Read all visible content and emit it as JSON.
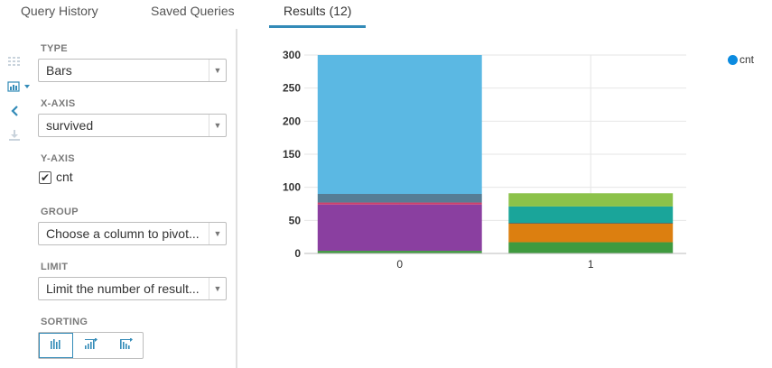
{
  "tabs": [
    {
      "label": "Query History"
    },
    {
      "label": "Saved Queries"
    },
    {
      "label": "Results (12)"
    }
  ],
  "sidebar_icons": [
    "grid-icon",
    "bar-chart-icon",
    "collapse-chevron-icon",
    "download-icon"
  ],
  "panel": {
    "type_label": "TYPE",
    "type_value": "Bars",
    "xaxis_label": "X-AXIS",
    "xaxis_value": "survived",
    "yaxis_label": "Y-AXIS",
    "yaxis_checkbox_label": "cnt",
    "yaxis_checked": true,
    "group_label": "GROUP",
    "group_value": "Choose a column to pivot...",
    "limit_label": "LIMIT",
    "limit_value": "Limit the number of result...",
    "sorting_label": "SORTING"
  },
  "colors": {
    "accent": "#338bb8",
    "legend": "#0b8be0"
  },
  "chart_data": {
    "type": "bar",
    "stacked": true,
    "categories": [
      "0",
      "1"
    ],
    "ylim": [
      0,
      300
    ],
    "yticks": [
      0,
      50,
      100,
      150,
      200,
      250,
      300
    ],
    "legend": [
      {
        "name": "cnt",
        "color": "#0b8be0"
      }
    ],
    "legend_position": "top-right",
    "grid": true,
    "stacks": [
      {
        "category": "0",
        "segments": [
          {
            "value": 4,
            "color": "#3f9a3f"
          },
          {
            "value": 70,
            "color": "#8a3fa0"
          },
          {
            "value": 3,
            "color": "#cc3f6b"
          },
          {
            "value": 13,
            "color": "#567d95"
          },
          {
            "value": 210,
            "color": "#5bb8e3"
          }
        ]
      },
      {
        "category": "1",
        "segments": [
          {
            "value": 17,
            "color": "#3f9a3f"
          },
          {
            "value": 28,
            "color": "#dc7f10"
          },
          {
            "value": 1,
            "color": "#5a3a2a"
          },
          {
            "value": 25,
            "color": "#1aa59a"
          },
          {
            "value": 20,
            "color": "#8cc24a"
          }
        ]
      }
    ]
  }
}
